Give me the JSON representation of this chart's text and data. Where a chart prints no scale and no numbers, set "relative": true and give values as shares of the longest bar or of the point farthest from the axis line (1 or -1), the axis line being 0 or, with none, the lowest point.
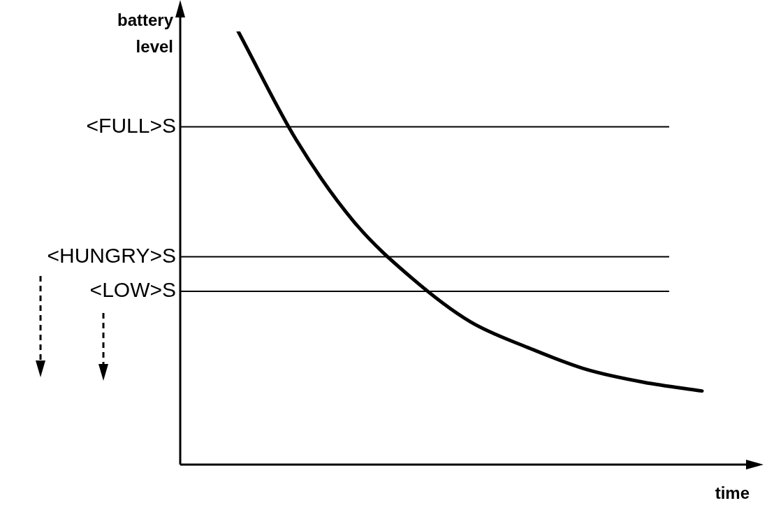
{
  "chart_data": {
    "type": "line",
    "xlabel": "time",
    "ylabel": "battery level",
    "relative": true,
    "legend": false,
    "marker": "none",
    "line_style": "solid",
    "categories": [
      null,
      null,
      null,
      null,
      null,
      null,
      null,
      null,
      null,
      null,
      null
    ],
    "series": [
      {
        "color": "#000000",
        "values": [
          null,
          1,
          0.75,
          0.56,
          0.43,
          0.33,
          0.27,
          0.22,
          0.19,
          0.17,
          null
        ]
      }
    ],
    "ref_lines": [
      {
        "axis": "y",
        "value": 0.78,
        "label": "<FULL>S",
        "color": "#000000"
      },
      {
        "axis": "y",
        "value": 0.48,
        "label": "<HUNGRY>S",
        "color": "#000000"
      },
      {
        "axis": "y",
        "value": 0.4,
        "label": "<LOW>S",
        "color": "#000000"
      }
    ]
  }
}
